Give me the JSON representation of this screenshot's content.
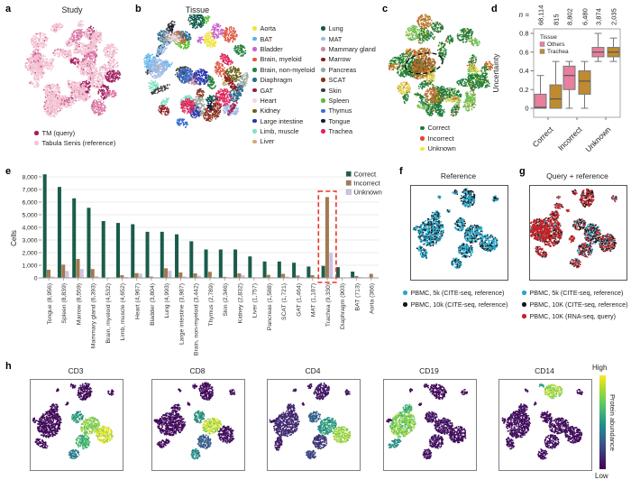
{
  "figure": {
    "panel_letters": {
      "a": "a",
      "b": "b",
      "c": "c",
      "d": "d",
      "e": "e",
      "f": "f",
      "g": "g",
      "h": "h"
    }
  },
  "panel_a": {
    "title": "Study",
    "legend": [
      {
        "label": "TM (query)",
        "color": "#9e1f5f"
      },
      {
        "label": "Tabula Senis (reference)",
        "color": "#f2c3d3"
      }
    ]
  },
  "panel_b": {
    "title": "Tissue",
    "legend_split": 12,
    "legend": [
      {
        "label": "Aorta",
        "color": "#f0e442"
      },
      {
        "label": "BAT",
        "color": "#56b4e9"
      },
      {
        "label": "Bladder",
        "color": "#cb63ce"
      },
      {
        "label": "Brain, myeloid",
        "color": "#e05a45"
      },
      {
        "label": "Brain, non-myeloid",
        "color": "#27823f"
      },
      {
        "label": "Diaphragm",
        "color": "#2e6b8e"
      },
      {
        "label": "GAT",
        "color": "#9c1e4e"
      },
      {
        "label": "Heart",
        "color": "#f6d8de"
      },
      {
        "label": "Kidney",
        "color": "#6e611c"
      },
      {
        "label": "Large intestine",
        "color": "#2a35b0"
      },
      {
        "label": "Limb, muscle",
        "color": "#7fe3c4"
      },
      {
        "label": "Liver",
        "color": "#c7b06f"
      },
      {
        "label": "Lung",
        "color": "#0e5a4d"
      },
      {
        "label": "MAT",
        "color": "#9db9e8"
      },
      {
        "label": "Mammary gland",
        "color": "#c68d9d"
      },
      {
        "label": "Marrow",
        "color": "#8e1a22"
      },
      {
        "label": "Pancreas",
        "color": "#9aa89e"
      },
      {
        "label": "SCAT",
        "color": "#8c3020"
      },
      {
        "label": "Skin",
        "color": "#3c3c3c"
      },
      {
        "label": "Spleen",
        "color": "#52c22b"
      },
      {
        "label": "Thymus",
        "color": "#3a6fd0"
      },
      {
        "label": "Tongue",
        "color": "#141b3c"
      },
      {
        "label": "Trachea",
        "color": "#e0265c"
      }
    ]
  },
  "panel_c": {
    "legend": [
      {
        "label": "Correct",
        "color": "#1e7d3c"
      },
      {
        "label": "Incorrect",
        "color": "#e8432c"
      },
      {
        "label": "Unknown",
        "color": "#f0ea3c"
      }
    ]
  },
  "panel_f": {
    "title": "Reference",
    "legend": [
      {
        "label": "PBMC, 5k (CITE-seq, reference)",
        "color": "#28a5c8"
      },
      {
        "label": "PBMC, 10k (CITE-seq, reference)",
        "color": "#151515"
      }
    ]
  },
  "panel_g": {
    "title": "Query + reference",
    "legend": [
      {
        "label": "PBMC, 5k (CITE-seq, reference)",
        "color": "#28a5c8"
      },
      {
        "label": "PBMC, 10K (CITE-seq, reference)",
        "color": "#151515"
      },
      {
        "label": "PBMC, 10K (RNA-seq, query)",
        "color": "#c02428"
      }
    ]
  },
  "panel_h": {
    "plot_titles": [
      "CD3",
      "CD8",
      "CD4",
      "CD19",
      "CD14"
    ],
    "colorbar": {
      "high": "High",
      "low": "Low",
      "label": "Protein abundance"
    }
  },
  "chart_data": [
    {
      "type": "box",
      "panel": "d",
      "ylabel": "Uncertainty",
      "ylim": [
        0,
        0.8
      ],
      "yticks": [
        "0",
        "0.2",
        "0.4",
        "0.6",
        "0.8"
      ],
      "categories": [
        "Correct",
        "Incorrect",
        "Unknown"
      ],
      "n_label": "n =",
      "n_values": [
        "68,114",
        "815",
        "8,802",
        "6,480",
        "3,874",
        "2,035"
      ],
      "legend_title": "Tissue",
      "series": [
        {
          "name": "Others",
          "color": "#e77f9d",
          "boxes": [
            {
              "lo": 0,
              "q1": 0,
              "med": 0.01,
              "q3": 0.15,
              "hi": 0.35
            },
            {
              "lo": 0,
              "q1": 0.2,
              "med": 0.35,
              "q3": 0.45,
              "hi": 0.5
            },
            {
              "lo": 0.5,
              "q1": 0.55,
              "med": 0.6,
              "q3": 0.65,
              "hi": 0.8
            }
          ]
        },
        {
          "name": "Trachea",
          "color": "#bf8b2e",
          "boxes": [
            {
              "lo": 0,
              "q1": 0,
              "med": 0.1,
              "q3": 0.25,
              "hi": 0.5
            },
            {
              "lo": 0,
              "q1": 0.15,
              "med": 0.29,
              "q3": 0.4,
              "hi": 0.5
            },
            {
              "lo": 0.5,
              "q1": 0.55,
              "med": 0.6,
              "q3": 0.65,
              "hi": 0.75
            }
          ]
        }
      ]
    },
    {
      "type": "bar",
      "panel": "e",
      "ylabel": "Cells",
      "ylim": [
        0,
        8000
      ],
      "ytick_labels": [
        "0",
        "1,000",
        "2,000",
        "3,000",
        "4,000",
        "5,000",
        "6,000",
        "7,000",
        "8,000"
      ],
      "categories": [
        "Tongue (8,956)",
        "Spleen (8,839)",
        "Marrow (8,559)",
        "Mammary gland (6,393)",
        "Brain, myeloid (4,532)",
        "Limb, muscle (4,652)",
        "Heart (4,967)",
        "Bladder (3,804)",
        "Lung (4,993)",
        "Large intestine (3,987)",
        "Brain, non-myeloid (3,442)",
        "Thymus (2,789)",
        "Skin (2,346)",
        "Kidney (2,832)",
        "Liver (1,757)",
        "Pancreas (1,588)",
        "SCAT (1,721)",
        "GAT (1,464)",
        "MAT (1,187)",
        "Trachea (9,330)",
        "Diaphragm (903)",
        "BAT (713)",
        "Aorta (366)"
      ],
      "series": [
        {
          "name": "Correct",
          "color": "#1a5c4b",
          "values": [
            8200,
            7200,
            6300,
            5550,
            4500,
            4350,
            4250,
            3650,
            3650,
            3450,
            2900,
            2250,
            2250,
            2250,
            1700,
            1300,
            1300,
            1200,
            900,
            950,
            850,
            500,
            30
          ]
        },
        {
          "name": "Incorrect",
          "color": "#a3794e",
          "values": [
            650,
            1050,
            1500,
            700,
            25,
            220,
            380,
            100,
            760,
            430,
            360,
            480,
            80,
            360,
            40,
            240,
            320,
            190,
            210,
            6400,
            40,
            150,
            320
          ]
        },
        {
          "name": "Unknown",
          "color": "#cdc3e6",
          "values": [
            110,
            550,
            700,
            140,
            10,
            80,
            340,
            50,
            560,
            110,
            180,
            60,
            20,
            220,
            20,
            50,
            100,
            75,
            80,
            1980,
            15,
            60,
            15
          ]
        }
      ],
      "highlight_category": "Trachea (9,330)",
      "highlight_color": "#e8342c"
    }
  ]
}
